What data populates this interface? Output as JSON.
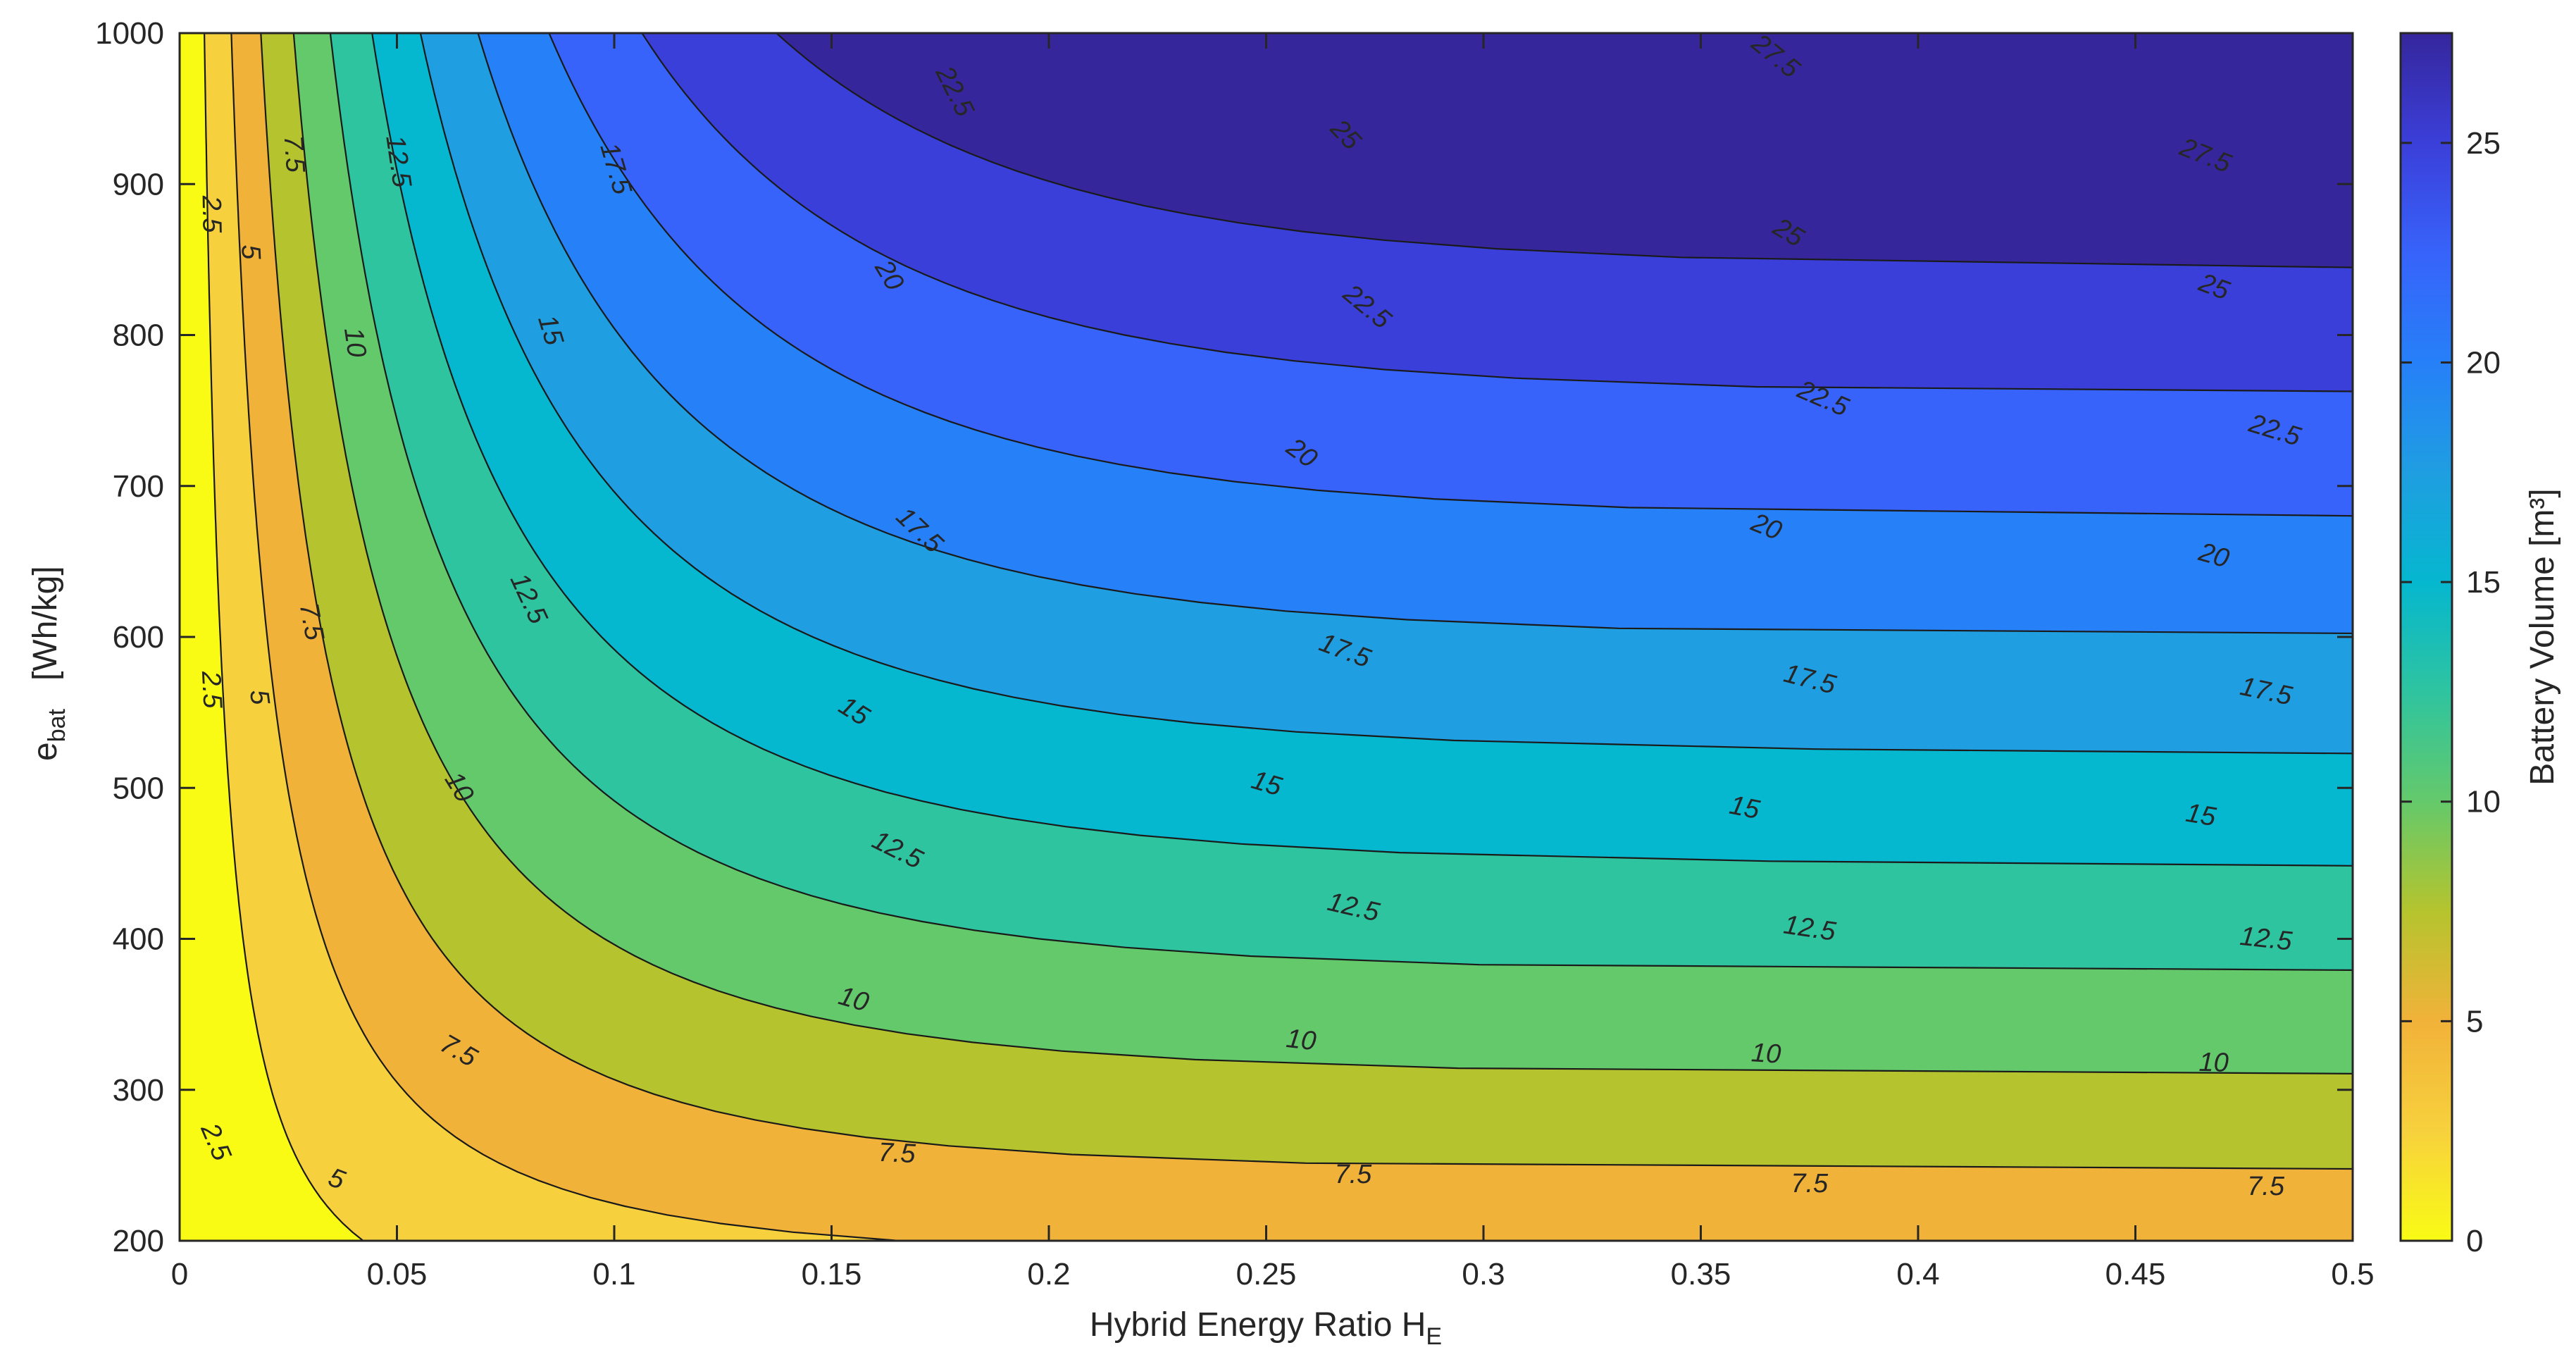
{
  "chart_data": {
    "type": "contour",
    "xlabel": "Hybrid  Energy  Ratio    H",
    "xlabel_sub": "E",
    "ylabel": "e",
    "ylabel_sub": "bat",
    "ylabel_unit": "[Wh/kg]",
    "colorbar_label": "Battery Volume [m³]",
    "xlim": [
      0,
      0.5
    ],
    "ylim": [
      200,
      1000
    ],
    "clim": [
      0,
      27.5
    ],
    "x_ticks": [
      0,
      0.05,
      0.1,
      0.15,
      0.2,
      0.25,
      0.3,
      0.35,
      0.4,
      0.45,
      0.5
    ],
    "x_tick_labels": [
      "0",
      "0.05",
      "0.1",
      "0.15",
      "0.2",
      "0.25",
      "0.3",
      "0.35",
      "0.4",
      "0.45",
      "0.5"
    ],
    "y_ticks": [
      200,
      300,
      400,
      500,
      600,
      700,
      800,
      900,
      1000
    ],
    "y_tick_labels": [
      "200",
      "300",
      "400",
      "500",
      "600",
      "700",
      "800",
      "900",
      "1000"
    ],
    "colorbar_ticks": [
      0,
      5,
      10,
      15,
      20,
      25
    ],
    "colorbar_tick_labels": [
      "0",
      "5",
      "10",
      "15",
      "20",
      "25"
    ],
    "contour_levels": [
      2.5,
      5,
      7.5,
      10,
      12.5,
      15,
      17.5,
      20,
      22.5,
      25,
      27.5
    ],
    "band_colors": [
      "#f9fb15",
      "#f7d13d",
      "#f1b239",
      "#b5c42e",
      "#64c96b",
      "#2ec4a0",
      "#05b7cf",
      "#1f9ee1",
      "#2680f8",
      "#3763fa",
      "#3b3fd9",
      "#35269c"
    ],
    "contour_labels": [
      {
        "level": "2.5",
        "x": 0.007,
        "y": 880
      },
      {
        "level": "2.5",
        "x": 0.007,
        "y": 565
      },
      {
        "level": "2.5",
        "x": 0.008,
        "y": 265
      },
      {
        "level": "5",
        "x": 0.016,
        "y": 855
      },
      {
        "level": "5",
        "x": 0.018,
        "y": 560
      },
      {
        "level": "5",
        "x": 0.036,
        "y": 240
      },
      {
        "level": "7.5",
        "x": 0.026,
        "y": 920
      },
      {
        "level": "7.5",
        "x": 0.03,
        "y": 610
      },
      {
        "level": "7.5",
        "x": 0.064,
        "y": 325
      },
      {
        "level": "7.5",
        "x": 0.165,
        "y": 257
      },
      {
        "level": "7.5",
        "x": 0.27,
        "y": 243
      },
      {
        "level": "7.5",
        "x": 0.375,
        "y": 237
      },
      {
        "level": "7.5",
        "x": 0.48,
        "y": 235
      },
      {
        "level": "10",
        "x": 0.04,
        "y": 795
      },
      {
        "level": "10",
        "x": 0.064,
        "y": 500
      },
      {
        "level": "10",
        "x": 0.155,
        "y": 359
      },
      {
        "level": "10",
        "x": 0.258,
        "y": 332
      },
      {
        "level": "10",
        "x": 0.365,
        "y": 323
      },
      {
        "level": "10",
        "x": 0.468,
        "y": 317
      },
      {
        "level": "12.5",
        "x": 0.05,
        "y": 915
      },
      {
        "level": "12.5",
        "x": 0.08,
        "y": 625
      },
      {
        "level": "12.5",
        "x": 0.165,
        "y": 458
      },
      {
        "level": "12.5",
        "x": 0.27,
        "y": 420
      },
      {
        "level": "12.5",
        "x": 0.375,
        "y": 406
      },
      {
        "level": "12.5",
        "x": 0.48,
        "y": 399
      },
      {
        "level": "15",
        "x": 0.085,
        "y": 803
      },
      {
        "level": "15",
        "x": 0.155,
        "y": 550
      },
      {
        "level": "15",
        "x": 0.25,
        "y": 502
      },
      {
        "level": "15",
        "x": 0.36,
        "y": 486
      },
      {
        "level": "15",
        "x": 0.465,
        "y": 481
      },
      {
        "level": "17.5",
        "x": 0.1,
        "y": 910
      },
      {
        "level": "17.5",
        "x": 0.17,
        "y": 670
      },
      {
        "level": "17.5",
        "x": 0.268,
        "y": 590
      },
      {
        "level": "17.5",
        "x": 0.375,
        "y": 571
      },
      {
        "level": "17.5",
        "x": 0.48,
        "y": 563
      },
      {
        "level": "20",
        "x": 0.163,
        "y": 839
      },
      {
        "level": "20",
        "x": 0.258,
        "y": 721
      },
      {
        "level": "20",
        "x": 0.365,
        "y": 672
      },
      {
        "level": "20",
        "x": 0.468,
        "y": 653
      },
      {
        "level": "22.5",
        "x": 0.178,
        "y": 961
      },
      {
        "level": "22.5",
        "x": 0.273,
        "y": 818
      },
      {
        "level": "22.5",
        "x": 0.378,
        "y": 757
      },
      {
        "level": "22.5",
        "x": 0.482,
        "y": 736
      },
      {
        "level": "25",
        "x": 0.268,
        "y": 932
      },
      {
        "level": "25",
        "x": 0.37,
        "y": 867
      },
      {
        "level": "25",
        "x": 0.468,
        "y": 831
      },
      {
        "level": "27.5",
        "x": 0.367,
        "y": 984
      },
      {
        "level": "27.5",
        "x": 0.466,
        "y": 918
      }
    ]
  }
}
